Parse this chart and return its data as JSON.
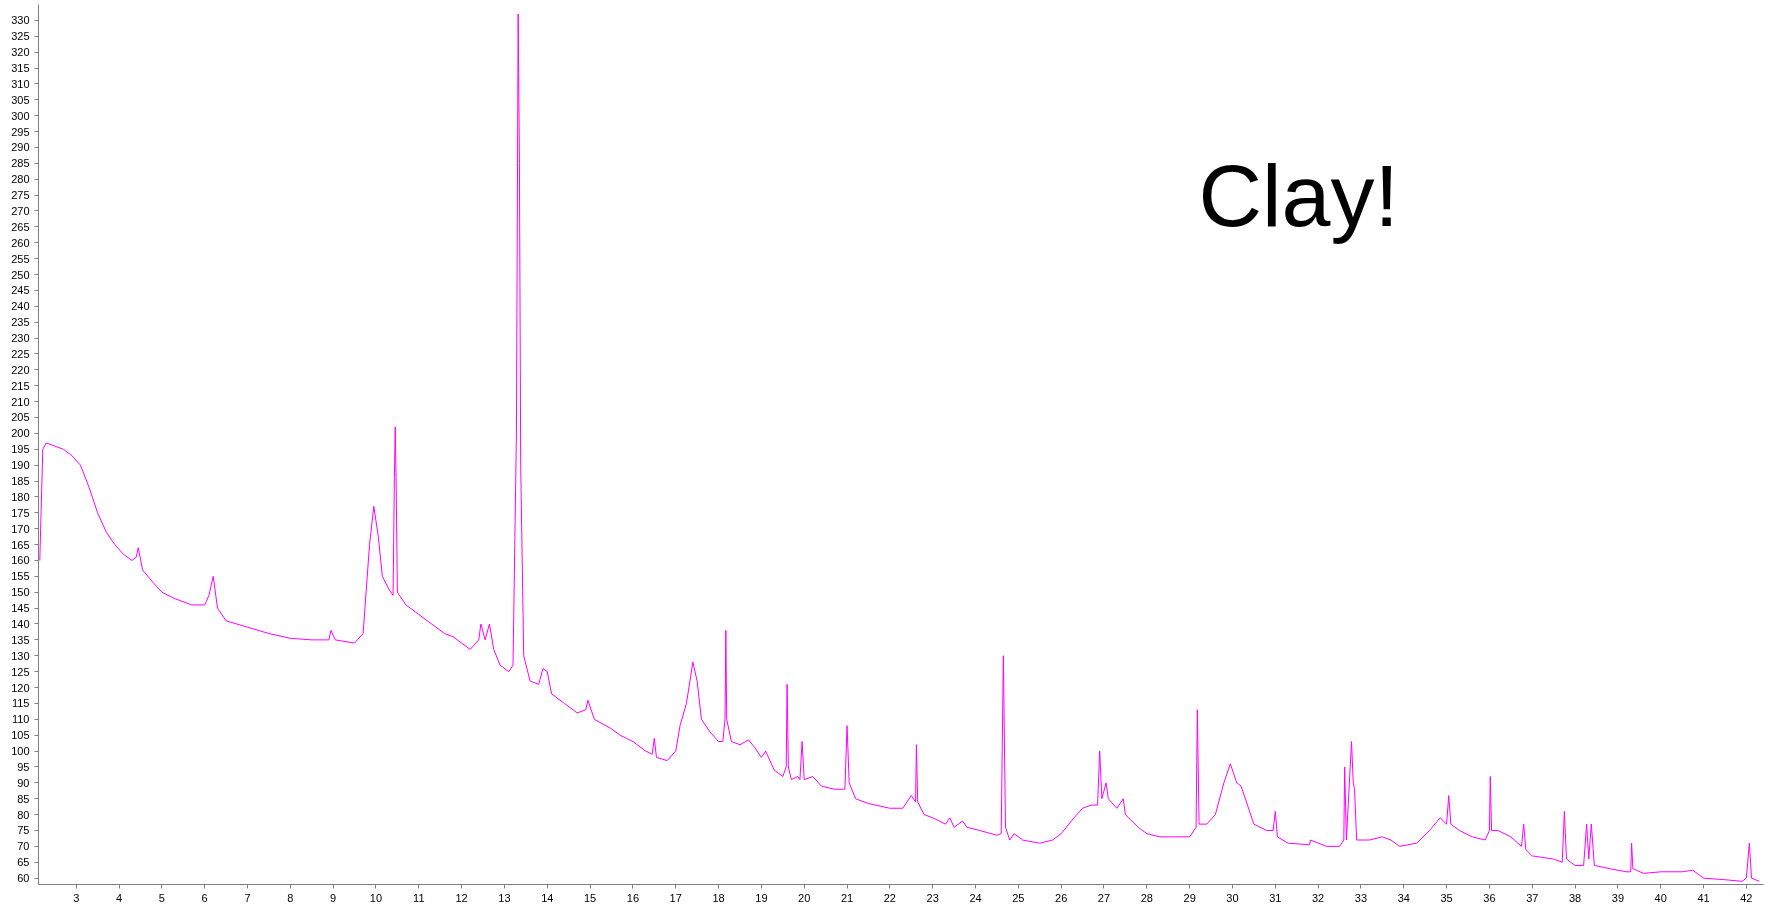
{
  "chart_data": {
    "type": "line",
    "color": "#ff00ff",
    "grid": false,
    "annotations": [
      "Clay!"
    ],
    "xlim": [
      2.12,
      42.4
    ],
    "ylim": [
      58,
      335
    ],
    "xticks": [
      3,
      4,
      5,
      6,
      7,
      8,
      9,
      10,
      11,
      12,
      13,
      14,
      15,
      16,
      17,
      18,
      19,
      20,
      21,
      22,
      23,
      24,
      25,
      26,
      27,
      28,
      29,
      30,
      31,
      32,
      33,
      34,
      35,
      36,
      37,
      38,
      39,
      40,
      41,
      42
    ],
    "yticks": [
      60,
      65,
      70,
      75,
      80,
      85,
      90,
      95,
      100,
      105,
      110,
      115,
      120,
      125,
      130,
      135,
      140,
      145,
      150,
      155,
      160,
      165,
      170,
      175,
      180,
      185,
      190,
      195,
      200,
      205,
      210,
      215,
      220,
      225,
      230,
      235,
      240,
      245,
      250,
      255,
      260,
      265,
      270,
      275,
      280,
      285,
      290,
      295,
      300,
      305,
      310,
      315,
      320,
      325,
      330
    ],
    "x": [
      2.15,
      2.18,
      2.22,
      2.3,
      2.5,
      2.7,
      2.9,
      3.1,
      3.3,
      3.5,
      3.7,
      3.9,
      4.1,
      4.3,
      4.4,
      4.45,
      4.55,
      4.8,
      5.0,
      5.3,
      5.7,
      6.0,
      6.1,
      6.2,
      6.3,
      6.5,
      7.0,
      7.5,
      8.0,
      8.5,
      8.9,
      8.95,
      9.05,
      9.5,
      9.7,
      9.85,
      9.95,
      10.05,
      10.15,
      10.3,
      10.4,
      10.43,
      10.45,
      10.47,
      10.5,
      10.7,
      11.0,
      11.3,
      11.6,
      11.8,
      12.0,
      12.2,
      12.4,
      12.45,
      12.55,
      12.65,
      12.75,
      12.9,
      13.1,
      13.2,
      13.28,
      13.32,
      13.35,
      13.38,
      13.45,
      13.6,
      13.8,
      13.9,
      14.0,
      14.1,
      14.4,
      14.7,
      14.9,
      14.95,
      15.1,
      15.5,
      15.7,
      16.0,
      16.3,
      16.45,
      16.5,
      16.55,
      16.8,
      17.0,
      17.1,
      17.25,
      17.4,
      17.5,
      17.6,
      17.8,
      18.0,
      18.1,
      18.15,
      18.17,
      18.19,
      18.3,
      18.5,
      18.7,
      18.85,
      19.0,
      19.1,
      19.3,
      19.5,
      19.58,
      19.6,
      19.63,
      19.7,
      19.85,
      19.9,
      19.95,
      20.0,
      20.2,
      20.4,
      20.7,
      20.95,
      21.0,
      21.05,
      21.2,
      21.5,
      22.0,
      22.3,
      22.4,
      22.5,
      22.6,
      22.62,
      22.65,
      22.8,
      23.0,
      23.3,
      23.4,
      23.5,
      23.7,
      23.8,
      24.1,
      24.5,
      24.6,
      24.65,
      24.7,
      24.8,
      24.9,
      25.1,
      25.5,
      25.8,
      26.0,
      26.3,
      26.5,
      26.7,
      26.85,
      26.9,
      26.95,
      27.05,
      27.1,
      27.3,
      27.45,
      27.5,
      27.8,
      28.0,
      28.3,
      28.6,
      29.0,
      29.15,
      29.18,
      29.22,
      29.4,
      29.6,
      29.8,
      29.95,
      30.1,
      30.2,
      30.35,
      30.5,
      30.8,
      30.95,
      31.0,
      31.05,
      31.3,
      31.8,
      31.82,
      32.2,
      32.5,
      32.6,
      32.62,
      32.66,
      32.78,
      32.82,
      32.85,
      32.9,
      33.2,
      33.5,
      33.7,
      33.9,
      34.3,
      34.6,
      34.85,
      35.0,
      35.05,
      35.1,
      35.3,
      35.6,
      35.9,
      36.0,
      36.02,
      36.05,
      36.2,
      36.5,
      36.75,
      36.8,
      36.85,
      37.0,
      37.5,
      37.7,
      37.75,
      37.8,
      38.0,
      38.2,
      38.27,
      38.32,
      38.38,
      38.45,
      38.8,
      39.2,
      39.3,
      39.32,
      39.35,
      39.6,
      40.0,
      40.5,
      40.75,
      41.0,
      41.5,
      41.9,
      42.0,
      42.07,
      42.12,
      42.3
    ],
    "values": [
      160,
      175,
      195,
      197,
      196,
      195,
      193,
      190,
      183,
      175,
      169,
      165,
      162,
      160,
      161,
      164,
      157,
      153,
      150,
      148,
      146,
      146,
      149,
      155,
      145,
      141,
      139,
      137,
      135.5,
      135,
      135,
      138,
      135,
      134,
      137,
      165,
      177,
      168,
      155,
      151,
      149,
      186,
      202,
      186,
      150,
      146,
      143,
      140,
      137,
      136,
      134,
      132,
      135,
      140,
      135,
      140,
      132,
      127,
      125,
      127,
      200,
      332,
      285,
      190,
      130,
      122,
      121,
      126,
      125,
      118,
      115,
      112,
      113,
      116,
      110,
      107,
      105,
      103,
      100,
      99,
      104,
      98,
      97,
      100,
      108,
      115,
      128,
      122,
      110,
      106,
      103,
      103,
      110,
      138,
      110,
      103,
      102,
      103.5,
      101,
      98,
      100,
      94,
      92,
      95,
      121,
      95,
      91,
      92,
      91,
      103,
      91,
      92,
      89,
      88,
      88,
      108,
      90,
      85,
      83.5,
      82,
      82,
      84,
      86,
      84,
      102,
      84,
      80,
      79,
      77,
      79,
      76,
      78,
      76,
      75,
      73.5,
      74,
      130,
      76,
      72,
      74,
      72,
      71,
      72,
      74,
      79,
      82,
      83,
      83,
      100,
      85,
      90,
      85,
      82,
      85,
      80,
      76,
      74,
      73,
      73,
      73,
      76,
      113,
      77,
      77,
      80,
      90,
      96,
      90,
      89,
      83,
      77,
      75,
      75,
      81,
      73,
      71,
      70.5,
      72,
      70,
      70,
      72,
      95,
      72,
      103,
      90,
      88,
      72,
      72,
      73,
      72,
      70,
      71,
      75,
      79,
      77,
      86,
      77,
      75,
      73,
      72,
      75,
      92,
      75,
      75,
      73,
      70,
      77,
      69,
      67,
      66,
      65,
      81,
      66,
      64,
      64,
      77,
      66,
      77,
      64,
      63,
      62,
      62,
      71,
      63,
      61.5,
      62,
      62,
      62.5,
      60,
      59.5,
      59,
      60,
      71,
      60,
      59
    ]
  }
}
